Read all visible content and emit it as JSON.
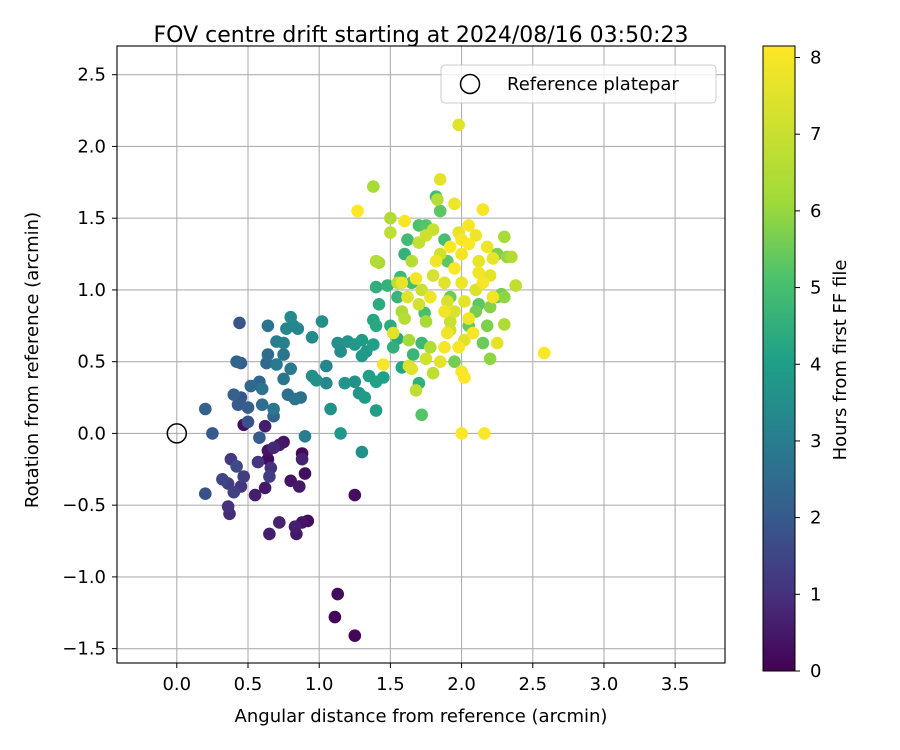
{
  "chart_data": {
    "type": "scatter",
    "title": "FOV centre drift starting at 2024/08/16 03:50:23",
    "xlabel": "Angular distance from reference (arcmin)",
    "ylabel": "Rotation from reference (arcmin)",
    "xlim": [
      -0.42,
      3.85
    ],
    "ylim": [
      -1.6,
      2.7
    ],
    "x_ticks": [
      0.0,
      0.5,
      1.0,
      1.5,
      2.0,
      2.5,
      3.0,
      3.5
    ],
    "x_tick_labels": [
      "0.0",
      "0.5",
      "1.0",
      "1.5",
      "2.0",
      "2.5",
      "3.0",
      "3.5"
    ],
    "y_ticks": [
      -1.5,
      -1.0,
      -0.5,
      0.0,
      0.5,
      1.0,
      1.5,
      2.0,
      2.5
    ],
    "y_tick_labels": [
      "−1.5",
      "−1.0",
      "−0.5",
      "0.0",
      "0.5",
      "1.0",
      "1.5",
      "2.0",
      "2.5"
    ],
    "grid": true,
    "legend": {
      "label": "Reference platepar",
      "placement": "top-right"
    },
    "reference_point": {
      "x": 0.0,
      "y": 0.0
    },
    "colorbar": {
      "label": "Hours from first FF file",
      "colormap": "viridis",
      "range": [
        0,
        8.15
      ],
      "ticks": [
        0,
        1,
        2,
        3,
        4,
        5,
        6,
        7,
        8
      ],
      "tick_labels": [
        "0",
        "1",
        "2",
        "3",
        "4",
        "5",
        "6",
        "7",
        "8"
      ]
    },
    "series": [
      {
        "points": [
          [
            0.2,
            0.17,
            2.2
          ],
          [
            0.25,
            0.0,
            2.0
          ],
          [
            0.2,
            -0.42,
            1.8
          ],
          [
            0.32,
            -0.32,
            1.5
          ],
          [
            0.36,
            -0.35,
            1.3
          ],
          [
            0.36,
            -0.51,
            1.0
          ],
          [
            0.37,
            -0.56,
            0.9
          ],
          [
            0.38,
            -0.18,
            1.2
          ],
          [
            0.4,
            -0.41,
            1.4
          ],
          [
            0.42,
            -0.23,
            1.6
          ],
          [
            0.45,
            -0.37,
            1.1
          ],
          [
            0.47,
            -0.3,
            1.3
          ],
          [
            0.42,
            0.5,
            2.3
          ],
          [
            0.45,
            0.49,
            2.1
          ],
          [
            0.44,
            0.77,
            1.9
          ],
          [
            0.4,
            0.27,
            2.2
          ],
          [
            0.43,
            0.2,
            2.0
          ],
          [
            0.45,
            0.25,
            1.9
          ],
          [
            0.5,
            0.18,
            2.1
          ],
          [
            0.5,
            0.08,
            1.8
          ],
          [
            0.47,
            0.06,
            0.3
          ],
          [
            0.55,
            -0.43,
            0.6
          ],
          [
            0.57,
            -0.2,
            1.1
          ],
          [
            0.58,
            -0.03,
            2.0
          ],
          [
            0.52,
            0.33,
            2.4
          ],
          [
            0.58,
            0.36,
            2.3
          ],
          [
            0.6,
            0.31,
            2.7
          ],
          [
            0.6,
            0.2,
            2.5
          ],
          [
            0.62,
            0.05,
            0.6
          ],
          [
            0.62,
            -0.38,
            0.5
          ],
          [
            0.64,
            -0.12,
            0.4
          ],
          [
            0.64,
            -0.18,
            0.2
          ],
          [
            0.66,
            -0.24,
            1.0
          ],
          [
            0.65,
            -0.3,
            1.3
          ],
          [
            0.68,
            -0.1,
            0.8
          ],
          [
            0.68,
            0.12,
            2.3
          ],
          [
            0.68,
            0.17,
            2.8
          ],
          [
            0.63,
            0.49,
            2.4
          ],
          [
            0.64,
            0.55,
            2.5
          ],
          [
            0.64,
            0.75,
            2.7
          ],
          [
            0.7,
            0.48,
            2.9
          ],
          [
            0.75,
            0.38,
            2.8
          ],
          [
            0.7,
            0.64,
            3.0
          ],
          [
            0.75,
            0.63,
            3.1
          ],
          [
            0.77,
            0.73,
            3.3
          ],
          [
            0.8,
            0.81,
            3.4
          ],
          [
            0.82,
            0.75,
            3.2
          ],
          [
            0.85,
            0.73,
            3.3
          ],
          [
            0.75,
            0.55,
            2.8
          ],
          [
            0.8,
            0.45,
            2.9
          ],
          [
            0.78,
            0.27,
            2.6
          ],
          [
            0.83,
            0.24,
            2.7
          ],
          [
            0.72,
            -0.08,
            0.5
          ],
          [
            0.75,
            -0.06,
            0.4
          ],
          [
            0.72,
            -0.62,
            0.7
          ],
          [
            0.65,
            -0.7,
            0.6
          ],
          [
            0.8,
            -0.33,
            0.4
          ],
          [
            0.83,
            -0.65,
            0.6
          ],
          [
            0.84,
            -0.7,
            0.5
          ],
          [
            0.9,
            -0.28,
            0.3
          ],
          [
            0.88,
            -0.18,
            0.7
          ],
          [
            0.86,
            -0.37,
            0.5
          ],
          [
            0.88,
            -0.62,
            0.4
          ],
          [
            0.92,
            -0.61,
            0.3
          ],
          [
            0.88,
            -0.14,
            0.2
          ],
          [
            0.95,
            0.67,
            3.4
          ],
          [
            0.95,
            0.4,
            3.5
          ],
          [
            0.98,
            0.37,
            3.6
          ],
          [
            1.02,
            0.78,
            3.5
          ],
          [
            1.05,
            0.47,
            3.3
          ],
          [
            1.05,
            0.35,
            3.4
          ],
          [
            1.08,
            0.17,
            3.6
          ],
          [
            0.9,
            -0.02,
            3.0
          ],
          [
            0.87,
            0.25,
            2.6
          ],
          [
            1.13,
            0.63,
            3.6
          ],
          [
            1.15,
            0.57,
            3.5
          ],
          [
            1.18,
            0.35,
            3.7
          ],
          [
            1.15,
            0.0,
            3.8
          ],
          [
            1.2,
            0.64,
            3.7
          ],
          [
            1.25,
            0.62,
            3.8
          ],
          [
            1.3,
            0.65,
            3.9
          ],
          [
            1.25,
            0.36,
            3.6
          ],
          [
            1.28,
            0.28,
            3.7
          ],
          [
            1.32,
            0.25,
            3.9
          ],
          [
            1.35,
            0.4,
            4.0
          ],
          [
            1.3,
            0.54,
            3.8
          ],
          [
            1.33,
            0.57,
            3.9
          ],
          [
            1.38,
            0.62,
            4.0
          ],
          [
            1.4,
            0.36,
            4.1
          ],
          [
            1.3,
            -0.13,
            3.6
          ],
          [
            1.4,
            0.16,
            4.0
          ],
          [
            1.45,
            0.39,
            4.1
          ],
          [
            1.25,
            -0.43,
            0.3
          ],
          [
            1.13,
            -1.12,
            0.2
          ],
          [
            1.11,
            -1.28,
            0.1
          ],
          [
            1.25,
            -1.41,
            0.1
          ],
          [
            1.38,
            0.79,
            4.2
          ],
          [
            1.4,
            0.75,
            4.3
          ],
          [
            1.42,
            0.9,
            4.4
          ],
          [
            1.4,
            1.02,
            4.5
          ],
          [
            1.48,
            1.03,
            4.6
          ],
          [
            1.5,
            0.75,
            4.4
          ],
          [
            1.52,
            0.6,
            4.5
          ],
          [
            1.55,
            0.95,
            4.7
          ],
          [
            1.57,
            1.09,
            4.8
          ],
          [
            1.6,
            1.25,
            4.6
          ],
          [
            1.62,
            1.35,
            4.9
          ],
          [
            1.65,
            1.05,
            5.0
          ],
          [
            1.66,
            0.55,
            4.7
          ],
          [
            1.7,
            0.35,
            4.5
          ],
          [
            1.72,
            0.63,
            4.8
          ],
          [
            1.74,
            0.84,
            5.0
          ],
          [
            1.55,
            0.66,
            4.3
          ],
          [
            1.58,
            0.46,
            4.2
          ],
          [
            1.7,
            1.45,
            5.1
          ],
          [
            1.75,
            1.45,
            5.2
          ],
          [
            1.82,
            1.65,
            4.9
          ],
          [
            1.85,
            1.55,
            5.3
          ],
          [
            1.88,
            1.35,
            5.0
          ],
          [
            1.9,
            1.2,
            5.3
          ],
          [
            1.92,
            0.95,
            5.5
          ],
          [
            1.95,
            0.5,
            5.6
          ],
          [
            2.05,
            0.75,
            5.4
          ],
          [
            2.1,
            0.85,
            5.6
          ],
          [
            2.12,
            0.9,
            5.3
          ],
          [
            2.15,
            0.63,
            5.5
          ],
          [
            2.18,
            0.75,
            5.7
          ],
          [
            2.2,
            0.52,
            5.9
          ],
          [
            2.2,
            0.88,
            5.8
          ],
          [
            2.25,
            0.95,
            5.4
          ],
          [
            2.28,
            0.97,
            5.6
          ],
          [
            2.3,
            0.95,
            5.9
          ],
          [
            2.25,
            1.25,
            5.7
          ],
          [
            2.32,
            1.23,
            6.0
          ],
          [
            2.3,
            1.37,
            6.3
          ],
          [
            2.35,
            1.23,
            6.5
          ],
          [
            2.38,
            1.03,
            6.8
          ],
          [
            2.3,
            0.76,
            6.4
          ],
          [
            2.25,
            0.63,
            7.6
          ],
          [
            1.38,
            1.72,
            6.3
          ],
          [
            1.4,
            1.2,
            6.5
          ],
          [
            1.42,
            1.19,
            6.2
          ],
          [
            1.5,
            1.5,
            6.5
          ],
          [
            1.5,
            1.4,
            6.8
          ],
          [
            1.55,
            1.05,
            6.7
          ],
          [
            1.58,
            0.85,
            6.4
          ],
          [
            1.6,
            0.8,
            6.6
          ],
          [
            1.63,
            0.65,
            6.2
          ],
          [
            1.65,
            0.45,
            7.5
          ],
          [
            1.68,
            0.3,
            6.8
          ],
          [
            1.72,
            0.13,
            5.2
          ],
          [
            1.65,
            1.2,
            6.6
          ],
          [
            1.7,
            1.33,
            6.9
          ],
          [
            1.72,
            1.0,
            7.0
          ],
          [
            1.75,
            0.78,
            6.3
          ],
          [
            1.78,
            0.6,
            6.5
          ],
          [
            1.8,
            0.42,
            6.8
          ],
          [
            1.8,
            1.42,
            7.0
          ],
          [
            1.83,
            1.63,
            6.6
          ],
          [
            1.85,
            1.77,
            7.6
          ],
          [
            1.85,
            1.25,
            7.2
          ],
          [
            1.88,
            1.05,
            7.5
          ],
          [
            1.9,
            0.92,
            7.3
          ],
          [
            1.92,
            0.72,
            7.1
          ],
          [
            1.95,
            0.85,
            7.4
          ],
          [
            1.95,
            1.6,
            7.8
          ],
          [
            1.98,
            1.4,
            7.7
          ],
          [
            2.0,
            1.25,
            7.9
          ],
          [
            2.0,
            1.05,
            7.8
          ],
          [
            2.02,
            0.92,
            7.6
          ],
          [
            2.05,
            0.8,
            7.9
          ],
          [
            2.05,
            1.45,
            8.0
          ],
          [
            2.1,
            1.38,
            7.8
          ],
          [
            2.12,
            1.2,
            7.7
          ],
          [
            2.15,
            1.05,
            8.0
          ],
          [
            2.15,
            1.56,
            8.0
          ],
          [
            2.18,
            1.3,
            7.8
          ],
          [
            2.2,
            1.1,
            7.6
          ],
          [
            2.22,
            0.95,
            7.9
          ],
          [
            2.22,
            1.22,
            7.7
          ],
          [
            1.27,
            1.55,
            8.1
          ],
          [
            1.6,
            1.48,
            8.0
          ],
          [
            1.98,
            2.15,
            7.5
          ],
          [
            2.0,
            0.0,
            8.1
          ],
          [
            2.16,
            0.0,
            8.1
          ],
          [
            2.0,
            0.43,
            8.0
          ],
          [
            2.02,
            0.39,
            8.1
          ],
          [
            2.58,
            0.56,
            8.1
          ],
          [
            1.45,
            0.48,
            8.0
          ],
          [
            1.63,
            0.47,
            7.4
          ],
          [
            1.75,
            0.52,
            7.2
          ],
          [
            1.85,
            0.5,
            7.6
          ],
          [
            1.88,
            0.6,
            8.0
          ],
          [
            1.9,
            0.7,
            7.9
          ],
          [
            1.92,
            0.78,
            7.0
          ],
          [
            1.78,
            0.95,
            7.8
          ],
          [
            1.8,
            1.1,
            7.3
          ],
          [
            1.82,
            1.2,
            7.9
          ],
          [
            1.62,
            0.95,
            7.5
          ],
          [
            1.68,
            1.08,
            7.9
          ],
          [
            1.7,
            0.9,
            7.2
          ],
          [
            1.58,
            1.05,
            7.7
          ],
          [
            1.52,
            0.7,
            7.5
          ],
          [
            1.95,
            1.15,
            8.1
          ],
          [
            1.98,
            0.6,
            8.0
          ],
          [
            2.02,
            0.65,
            7.5
          ],
          [
            2.08,
            0.7,
            8.0
          ],
          [
            2.1,
            1.0,
            7.4
          ],
          [
            2.12,
            1.12,
            7.9
          ],
          [
            2.05,
            1.32,
            8.1
          ],
          [
            1.88,
            0.85,
            7.9
          ],
          [
            1.75,
            1.38,
            7.1
          ],
          [
            1.92,
            1.3,
            8.1
          ],
          [
            2.0,
            1.35,
            8.0
          ]
        ]
      }
    ]
  }
}
